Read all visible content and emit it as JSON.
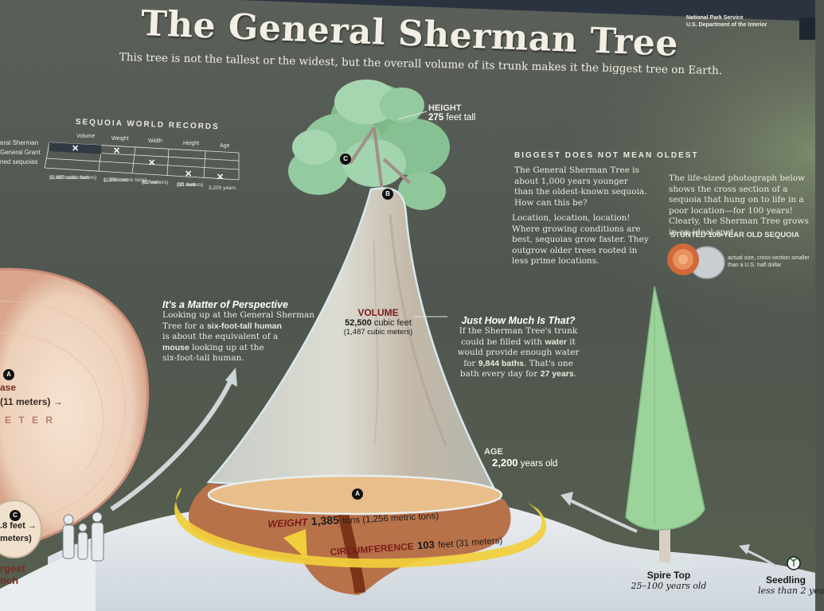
{
  "panel": {
    "title": "The General Sherman Tree",
    "subtitle": "This tree is not the tallest or the widest, but the overall volume of its trunk makes it the biggest tree on Earth.",
    "agency_line1": "National Park Service",
    "agency_line2": "U.S. Department of the Interior"
  },
  "records": {
    "heading": "SEQUOIA WORLD RECORDS",
    "columns": [
      "Volume",
      "Weight",
      "Width",
      "Height",
      "Age"
    ],
    "rows": [
      "eral Sherman",
      "General Grant",
      "ned sequoias"
    ],
    "values": [
      "52,500 cubic feet",
      "1,385 tons",
      "40 feet",
      "311 feet",
      "3,200 years"
    ],
    "value_subs": [
      "(1,487 cubic meters)",
      "(1,256 metric tons)",
      "(12 meters)",
      "(95 meters)",
      ""
    ],
    "mark": "✕"
  },
  "height": {
    "label": "HEIGHT",
    "value": "275",
    "unit": "feet tall"
  },
  "biggest": {
    "heading": "BIGGEST DOES NOT MEAN OLDEST",
    "p1": "The General Sherman Tree is about 1,000 years younger than the oldest-known sequoia. How can this be?",
    "p2": "Location, location, location! Where growing conditions are best, sequoias grow faster. They outgrow older trees rooted in less prime locations.",
    "p3": "The life-sized photograph below shows the cross section of a sequoia that hung on to life in a poor location—for 100 years! Clearly, the Sherman Tree grows in an ideal spot.",
    "stunted_label": "STUNTED 100-YEAR OLD SEQUOIA",
    "stunted_caption": "actual size, cross-section smaller than a U.S. half dollar"
  },
  "perspective": {
    "title": "It's a Matter of Perspective",
    "line1": "Looking up at the General Sherman",
    "line2a": "Tree for a ",
    "line2b": "six-foot-tall human",
    "line3": "is about the equivalent of a",
    "line4a": "mouse",
    "line4b": " looking up at the",
    "line5": "six-foot-tall human."
  },
  "volume": {
    "label": "VOLUME",
    "value": "52,500",
    "unit": "cubic feet",
    "metric": "(1,487 cubic meters)"
  },
  "howmuch": {
    "title": "Just How Much Is That?",
    "line1": "If the Sherman Tree's trunk",
    "line2a": "could be filled with ",
    "line2b": "water",
    "line2c": " it",
    "line3": "would provide enough water",
    "line4a": "for ",
    "line4b": "9,844 baths",
    "line4c": ". That's one",
    "line5a": "bath every day for ",
    "line5b": "27 years",
    "line5c": "."
  },
  "age": {
    "label": "AGE",
    "value": "2,200",
    "unit": "years old"
  },
  "weight": {
    "label": "WEIGHT",
    "value": "1,385",
    "unit": "tons (1,256 metric tons)"
  },
  "circumference": {
    "label": "CIRCUMFERENCE",
    "value": "103",
    "unit": "feet (31 meters)"
  },
  "left_cut": {
    "base_a": "ase",
    "base_b": "(11 meters)",
    "diameter": "E T E R",
    "branch_a": ".8 feet",
    "branch_b": "meters)",
    "largest_a": "rgest",
    "largest_b": "nch"
  },
  "badges": {
    "a": "A",
    "b": "B",
    "c": "C"
  },
  "spire": {
    "label": "Spire Top",
    "years": "25–100 years old"
  },
  "seedling": {
    "label": "Seedling",
    "years": "less than 2 yea"
  },
  "colors": {
    "background": "#4f5750",
    "trunk": "#c9cbc5",
    "ring_yellow": "#f0cf3c",
    "label_red": "#7a1a1a",
    "foliage": "#8ec89a"
  }
}
